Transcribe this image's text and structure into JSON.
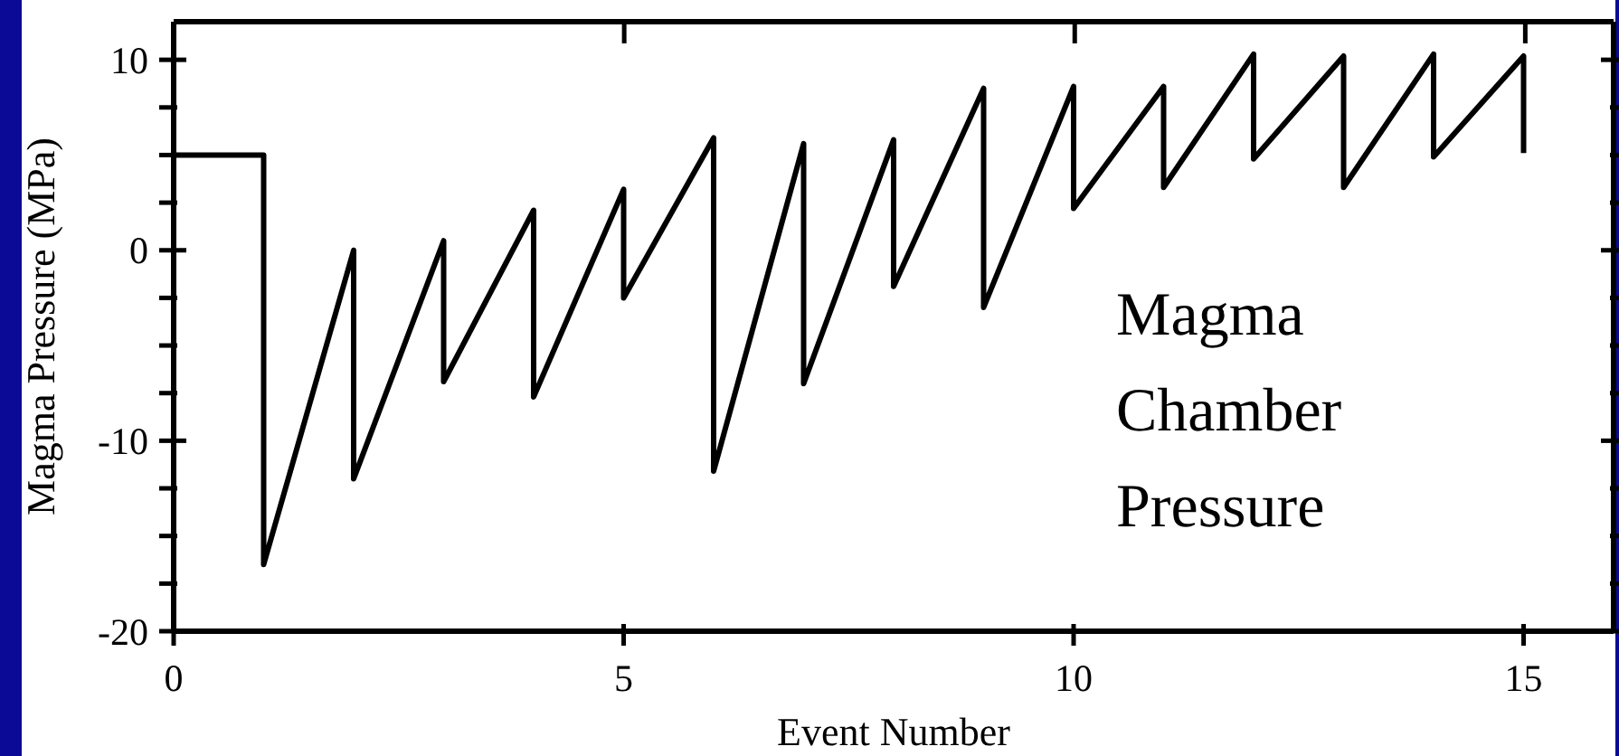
{
  "chart_data": {
    "type": "line",
    "xlabel": "Event Number",
    "ylabel": "Magma Pressure (MPa)",
    "annotations": [
      "Magma Chamber Pressure"
    ],
    "x": [
      0,
      1,
      1,
      2,
      2,
      3,
      3,
      4,
      4,
      5,
      5,
      6,
      6,
      7,
      7,
      8,
      8,
      9,
      9,
      10,
      10,
      11,
      11,
      12,
      12,
      13,
      13,
      14,
      14,
      15,
      15
    ],
    "series": [
      {
        "color": "#000000",
        "values": [
          5,
          5,
          -16.5,
          0,
          -12,
          0.5,
          -6.9,
          2.1,
          -7.7,
          3.2,
          -2.5,
          5.9,
          -11.6,
          5.6,
          -7,
          5.8,
          -1.9,
          8.5,
          -3,
          8.6,
          2.2,
          8.6,
          3.3,
          10.3,
          4.8,
          10.2,
          3.3,
          10.3,
          4.9,
          10.2,
          5.1
        ]
      }
    ],
    "xlim": [
      0,
      16
    ],
    "ylim": [
      -20,
      12
    ],
    "xticks": [
      0,
      5,
      10,
      15
    ],
    "yticks": [
      -20,
      {
        "value": -17.5,
        "label": null
      },
      {
        "value": -15,
        "label": null
      },
      {
        "value": -12.5,
        "label": null
      },
      -10,
      {
        "value": -7.5,
        "label": null
      },
      {
        "value": -5,
        "label": null
      },
      {
        "value": -2.5,
        "label": null
      },
      0,
      {
        "value": 2.5,
        "label": null
      },
      {
        "value": 5,
        "label": null
      },
      {
        "value": 7.5,
        "label": null
      },
      10
    ],
    "grid": false,
    "legend": false,
    "marker": "none",
    "line_style": "solid"
  }
}
